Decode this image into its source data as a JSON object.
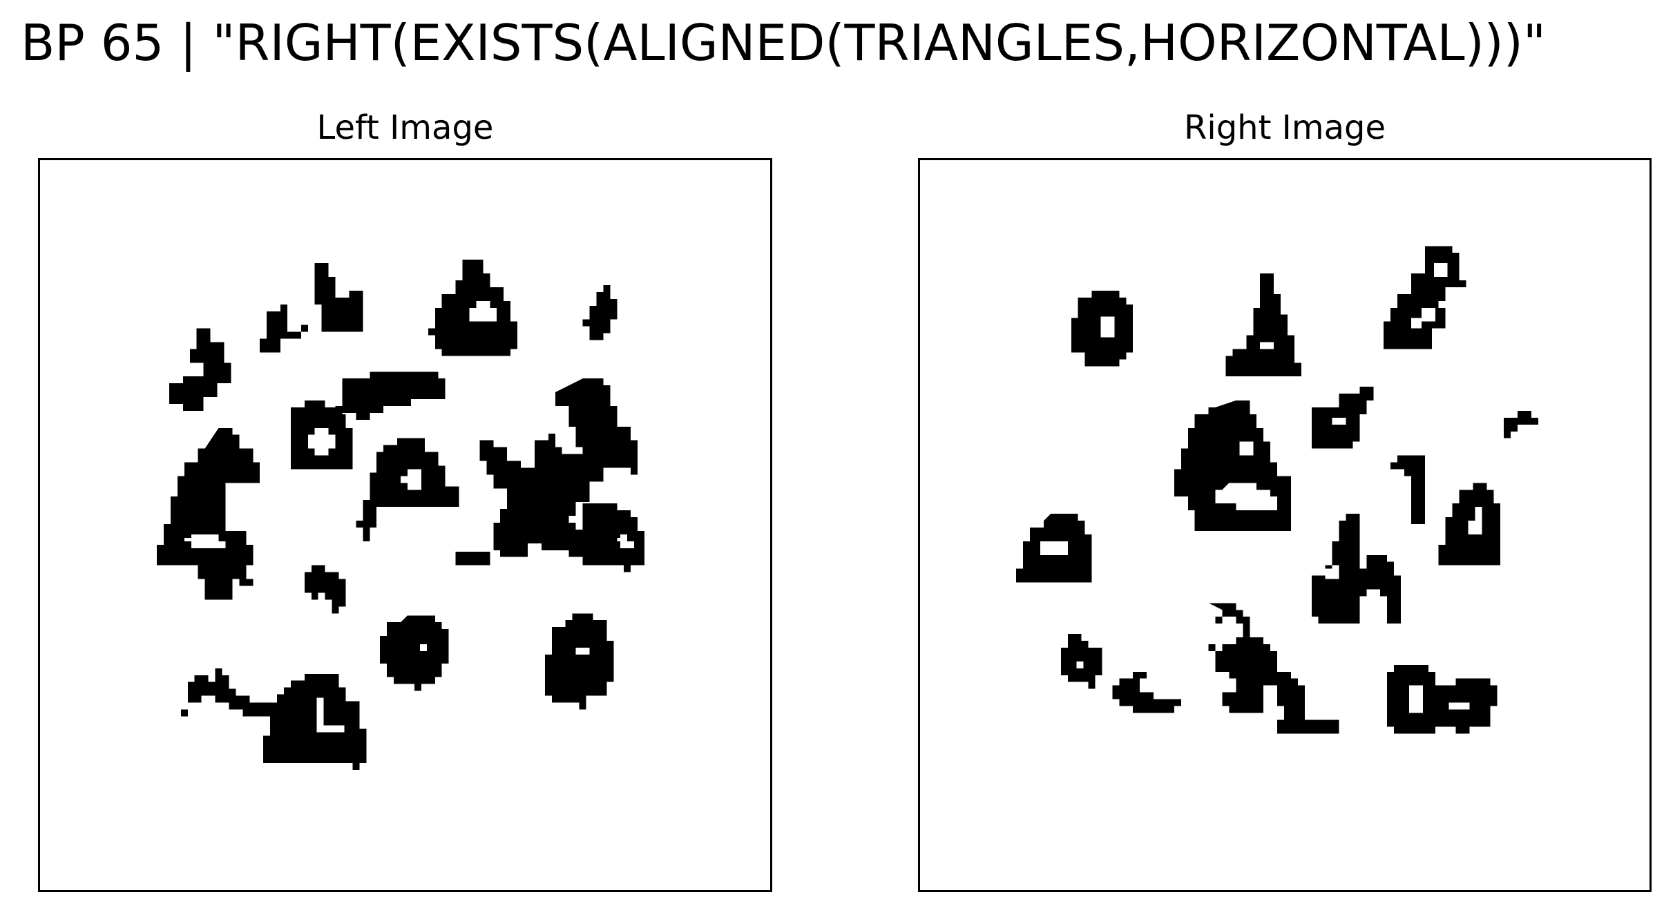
{
  "figure": {
    "title": "BP 65 | \"RIGHT(EXISTS(ALIGNED(TRIANGLES,HORIZONTAL)))\""
  },
  "panels": [
    {
      "id": "left",
      "title": "Left Image"
    },
    {
      "id": "right",
      "title": "Right Image"
    }
  ],
  "colors": {
    "ink": "#000000",
    "background": "#ffffff"
  }
}
